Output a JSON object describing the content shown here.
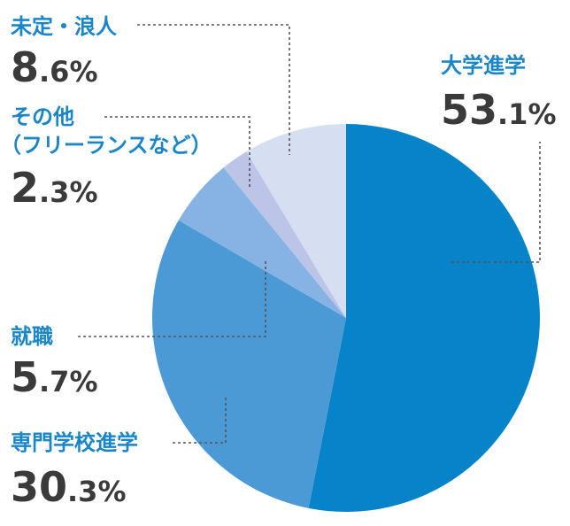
{
  "chart_data": {
    "type": "pie",
    "slices": [
      {
        "label": "大学進学",
        "value": 53.1,
        "int": "53",
        "dec": ".1%",
        "color": "#0683c9"
      },
      {
        "label": "専門学校進学",
        "value": 30.3,
        "int": "30",
        "dec": ".3%",
        "color": "#4b9ad6"
      },
      {
        "label": "就職",
        "value": 5.7,
        "int": "5",
        "dec": ".7%",
        "color": "#86b3e3"
      },
      {
        "label": "その他",
        "label2": "（フリーランスなど）",
        "value": 2.3,
        "int": "2",
        "dec": ".3%",
        "color": "#bcc4e7"
      },
      {
        "label": "未定・浪人",
        "value": 8.6,
        "int": "8",
        "dec": ".6%",
        "color": "#d6def1"
      }
    ]
  }
}
